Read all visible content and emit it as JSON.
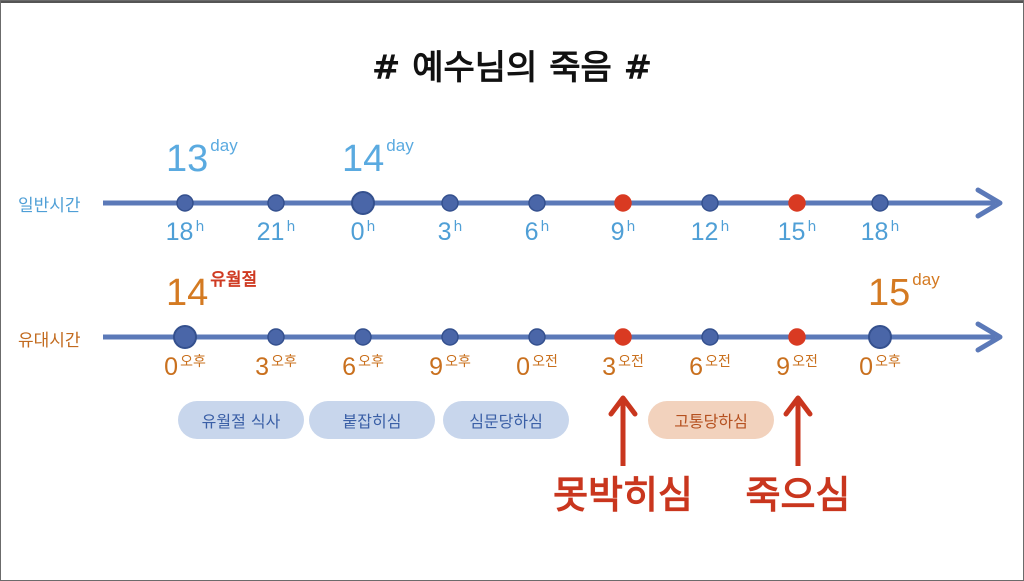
{
  "title": "# 예수님의 죽음 #",
  "general_timeline": {
    "label": "일반시간",
    "days": [
      {
        "num": "13",
        "sup": "day"
      },
      {
        "num": "14",
        "sup": "day"
      }
    ],
    "ticks": [
      {
        "value": "18",
        "unit": "h",
        "highlight": false,
        "major": false
      },
      {
        "value": "21",
        "unit": "h",
        "highlight": false,
        "major": false
      },
      {
        "value": "0",
        "unit": "h",
        "highlight": false,
        "major": true
      },
      {
        "value": "3",
        "unit": "h",
        "highlight": false,
        "major": false
      },
      {
        "value": "6",
        "unit": "h",
        "highlight": false,
        "major": false
      },
      {
        "value": "9",
        "unit": "h",
        "highlight": true,
        "major": false
      },
      {
        "value": "12",
        "unit": "h",
        "highlight": false,
        "major": false
      },
      {
        "value": "15",
        "unit": "h",
        "highlight": true,
        "major": false
      },
      {
        "value": "18",
        "unit": "h",
        "highlight": false,
        "major": false
      }
    ]
  },
  "jewish_timeline": {
    "label": "유대시간",
    "days": [
      {
        "num": "14",
        "sup": "유월절"
      },
      {
        "num": "15",
        "sup": "day"
      }
    ],
    "ticks": [
      {
        "value": "0",
        "unit": "오후",
        "highlight": false,
        "major": true
      },
      {
        "value": "3",
        "unit": "오후",
        "highlight": false,
        "major": false
      },
      {
        "value": "6",
        "unit": "오후",
        "highlight": false,
        "major": false
      },
      {
        "value": "9",
        "unit": "오후",
        "highlight": false,
        "major": false
      },
      {
        "value": "0",
        "unit": "오전",
        "highlight": false,
        "major": false
      },
      {
        "value": "3",
        "unit": "오전",
        "highlight": true,
        "major": false
      },
      {
        "value": "6",
        "unit": "오전",
        "highlight": false,
        "major": false
      },
      {
        "value": "9",
        "unit": "오전",
        "highlight": true,
        "major": false
      },
      {
        "value": "0",
        "unit": "오후",
        "highlight": false,
        "major": true
      }
    ]
  },
  "events_periods": [
    {
      "label": "유월절 식사",
      "color": "blue"
    },
    {
      "label": "붙잡히심",
      "color": "blue"
    },
    {
      "label": "심문당하심",
      "color": "blue"
    },
    {
      "label": "고통당하심",
      "color": "orange"
    }
  ],
  "events_key": [
    {
      "label": "못박히심"
    },
    {
      "label": "죽으심"
    }
  ],
  "colors": {
    "axis": "#5b79b8",
    "dot": "#4a66a8",
    "highlight_dot": "#d93a22",
    "general_text": "#4f9fd6",
    "jewish_text": "#c9701e",
    "event_red": "#c9361e"
  }
}
